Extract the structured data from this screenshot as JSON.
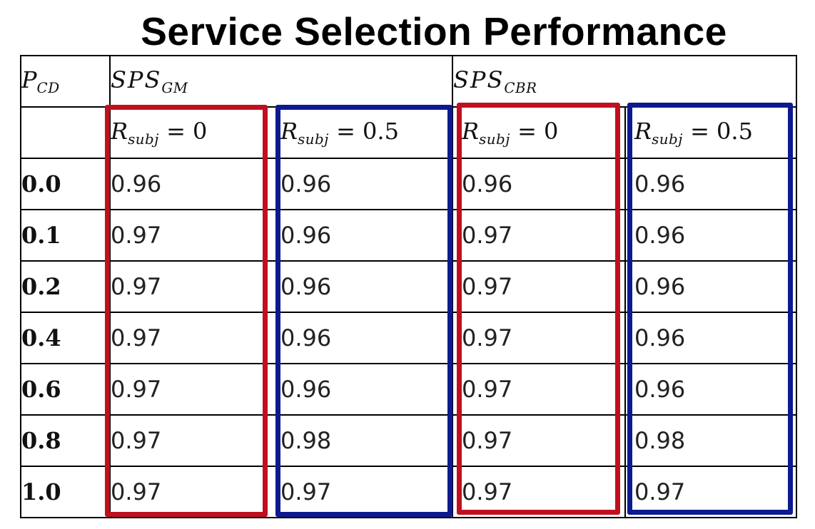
{
  "title": "Service Selection Performance",
  "colors": {
    "red_box": "#c0101f",
    "blue_box": "#0d1a8f"
  },
  "chart_data": {
    "type": "table",
    "title": "Service Selection Performance",
    "corner_header": {
      "main": "P",
      "sub": "CD"
    },
    "groups": [
      {
        "main": "SPS",
        "sub": "GM"
      },
      {
        "main": "SPS",
        "sub": "CBR"
      }
    ],
    "subcolumns": [
      {
        "main": "R",
        "sub": "subj",
        "rest": " = 0"
      },
      {
        "main": "R",
        "sub": "subj",
        "rest": " = 0.5"
      },
      {
        "main": "R",
        "sub": "subj",
        "rest": " = 0"
      },
      {
        "main": "R",
        "sub": "subj",
        "rest": " = 0.5"
      }
    ],
    "rows": [
      {
        "label": "0.0",
        "values": [
          "0.96",
          "0.96",
          "0.96",
          "0.96"
        ]
      },
      {
        "label": "0.1",
        "values": [
          "0.97",
          "0.96",
          "0.97",
          "0.96"
        ]
      },
      {
        "label": "0.2",
        "values": [
          "0.97",
          "0.96",
          "0.97",
          "0.96"
        ]
      },
      {
        "label": "0.4",
        "values": [
          "0.97",
          "0.96",
          "0.97",
          "0.96"
        ]
      },
      {
        "label": "0.6",
        "values": [
          "0.97",
          "0.96",
          "0.97",
          "0.96"
        ]
      },
      {
        "label": "0.8",
        "values": [
          "0.97",
          "0.98",
          "0.97",
          "0.98"
        ]
      },
      {
        "label": "1.0",
        "values": [
          "0.97",
          "0.97",
          "0.97",
          "0.97"
        ]
      }
    ],
    "highlight_boxes": [
      {
        "column": 1,
        "color": "red"
      },
      {
        "column": 2,
        "color": "blue"
      },
      {
        "column": 3,
        "color": "red"
      },
      {
        "column": 4,
        "color": "blue"
      }
    ]
  }
}
